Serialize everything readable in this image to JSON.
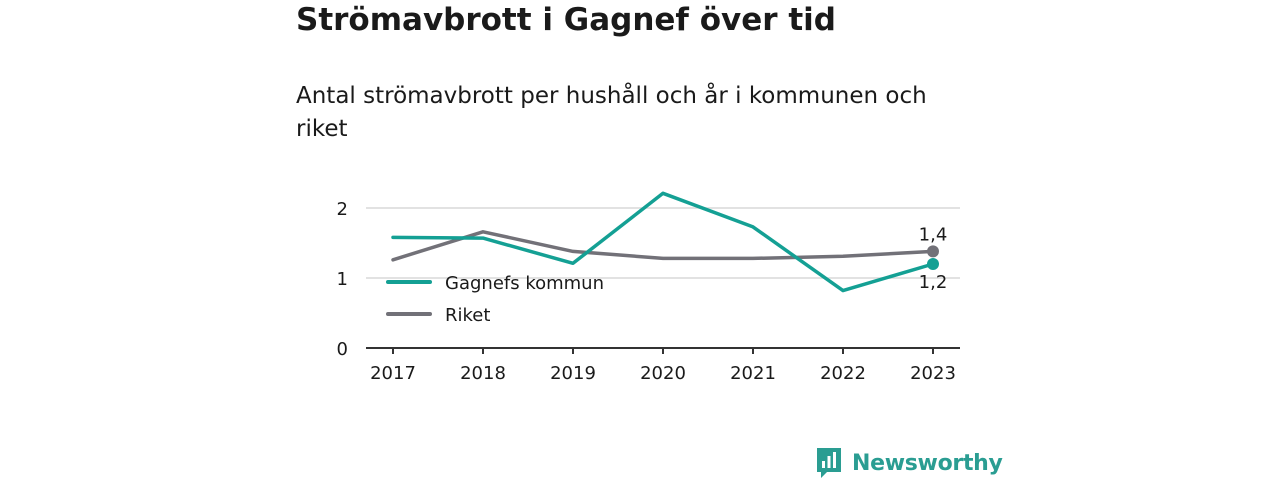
{
  "header": {
    "title": "Strömavbrott i Gagnef över tid",
    "subtitle": "Antal strömavbrott per hushåll och år i kommunen och riket"
  },
  "brand": {
    "name": "Newsworthy",
    "icon": "newsworthy-logo-icon",
    "color": "#2a9d92"
  },
  "chart_data": {
    "type": "line",
    "x": [
      2017,
      2018,
      2019,
      2020,
      2021,
      2022,
      2023
    ],
    "ylim": [
      0,
      2.4
    ],
    "yticks": [
      0,
      1,
      2
    ],
    "grid": true,
    "legend_position": "bottom-left",
    "series": [
      {
        "name": "Gagnefs kommun",
        "color": "#14a094",
        "values": [
          1.58,
          1.57,
          1.21,
          2.21,
          1.73,
          0.82,
          1.2
        ],
        "end_label": "1,2"
      },
      {
        "name": "Riket",
        "color": "#727178",
        "values": [
          1.26,
          1.66,
          1.38,
          1.28,
          1.28,
          1.31,
          1.38
        ],
        "end_label": "1,4"
      }
    ]
  }
}
